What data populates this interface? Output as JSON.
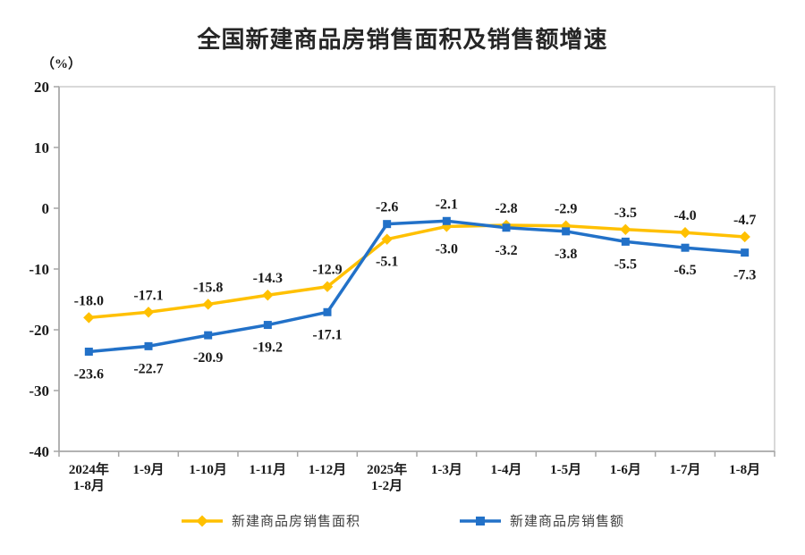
{
  "chart_data": {
    "type": "line",
    "title": "全国新建商品房销售面积及销售额增速",
    "unit_label": "（%）",
    "categories": [
      "2024年\n1-8月",
      "1-9月",
      "1-10月",
      "1-11月",
      "1-12月",
      "2025年\n1-2月",
      "1-3月",
      "1-4月",
      "1-5月",
      "1-6月",
      "1-7月",
      "1-8月"
    ],
    "ylim": [
      -40,
      20
    ],
    "yticks": [
      20,
      10,
      0,
      -10,
      -20,
      -30,
      -40
    ],
    "grid": false,
    "legend_position": "bottom",
    "series": [
      {
        "name": "新建商品房销售面积",
        "marker": "diamond",
        "color": "#FFC000",
        "values": [
          -18.0,
          -17.1,
          -15.8,
          -14.3,
          -12.9,
          -5.1,
          -3.0,
          -2.8,
          -2.9,
          -3.5,
          -4.0,
          -4.7
        ]
      },
      {
        "name": "新建商品房销售额",
        "marker": "square",
        "color": "#2271C8",
        "values": [
          -23.6,
          -22.7,
          -20.9,
          -19.2,
          -17.1,
          -2.6,
          -2.1,
          -3.2,
          -3.8,
          -5.5,
          -6.5,
          -7.3
        ]
      }
    ],
    "axis_color": "#a6a6a6",
    "border_color": "#d9d9d9",
    "label_color": "#1a1a1a"
  }
}
